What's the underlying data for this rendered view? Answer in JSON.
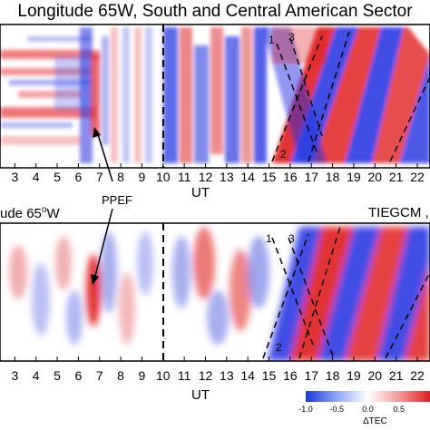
{
  "top_panel": {
    "title": "Longitude  65W, South and Central American Sector",
    "annotations": [
      "1",
      "3",
      "2"
    ],
    "arrow_label": "PPEF"
  },
  "bottom_panel": {
    "left_label": "ude 65°W",
    "right_label": "TIEGCM ,",
    "annotations": [
      "1",
      "3",
      "2"
    ]
  },
  "colorbar": {
    "label": "ΔTEC",
    "ticks": [
      "-1.0",
      "-0.5",
      "0.0",
      "0.5"
    ],
    "colors": [
      "#1a35e0",
      "#8fa6f5",
      "#ffffff",
      "#f59a9a",
      "#e01f1f"
    ]
  },
  "chart_data": [
    {
      "type": "heatmap",
      "panel": "observed",
      "x": [
        3,
        4,
        5,
        6,
        7,
        8,
        9,
        10,
        11,
        12,
        13,
        14,
        15,
        16,
        17,
        18,
        19,
        20,
        21,
        22
      ],
      "xticklabels": [
        "3",
        "4",
        "5",
        "6",
        "7",
        "8",
        "9",
        "10",
        "11",
        "12",
        "13",
        "14",
        "15",
        "16",
        "17",
        "18",
        "19",
        "20",
        "21",
        "22"
      ],
      "xlabel": "UT",
      "xlim": [
        2.3,
        22.6
      ],
      "vline_dashed": 10
    },
    {
      "type": "heatmap",
      "panel": "TIEGCM",
      "x": [
        3,
        4,
        5,
        6,
        7,
        8,
        9,
        10,
        11,
        12,
        13,
        14,
        15,
        16,
        17,
        18,
        19,
        20,
        21,
        22
      ],
      "xticklabels": [
        "3",
        "4",
        "5",
        "6",
        "7",
        "8",
        "9",
        "10",
        "11",
        "12",
        "13",
        "14",
        "15",
        "16",
        "17",
        "18",
        "19",
        "20",
        "21",
        "22"
      ],
      "xlabel": "UT",
      "xlim": [
        2.3,
        22.6
      ],
      "vline_dashed": 10
    }
  ]
}
